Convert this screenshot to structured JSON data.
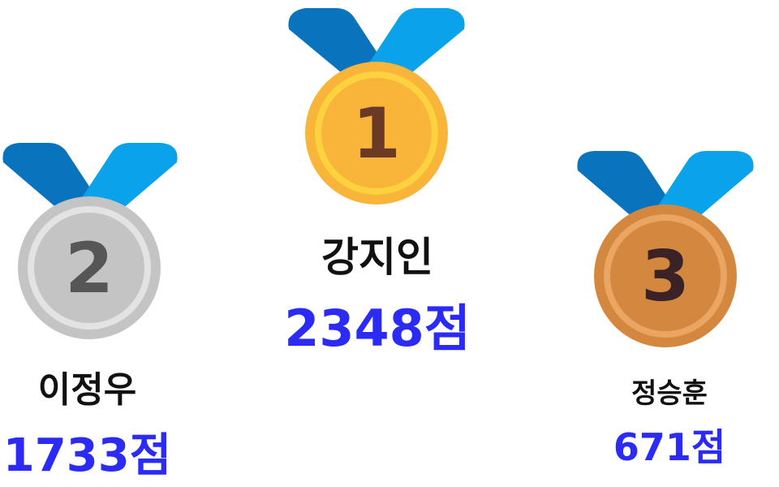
{
  "colors": {
    "score": "#2b2bf5",
    "name": "#111111",
    "ribbon_dark": "#0a73bd",
    "ribbon_light": "#0aa2ea",
    "gold": "#f9b53a",
    "gold_rim": "#fdd23f",
    "silver": "#c4c4c4",
    "silver_rim": "#e3e3e3",
    "bronze": "#d4883f",
    "bronze_rim": "#eba563"
  },
  "podium": [
    {
      "rank": 1,
      "rank_label": "1",
      "medal": "gold-medal-icon",
      "name": "강지인",
      "score": "2348점"
    },
    {
      "rank": 2,
      "rank_label": "2",
      "medal": "silver-medal-icon",
      "name": "이정우",
      "score": "1733점"
    },
    {
      "rank": 3,
      "rank_label": "3",
      "medal": "bronze-medal-icon",
      "name": "정승훈",
      "score": "671점"
    }
  ]
}
